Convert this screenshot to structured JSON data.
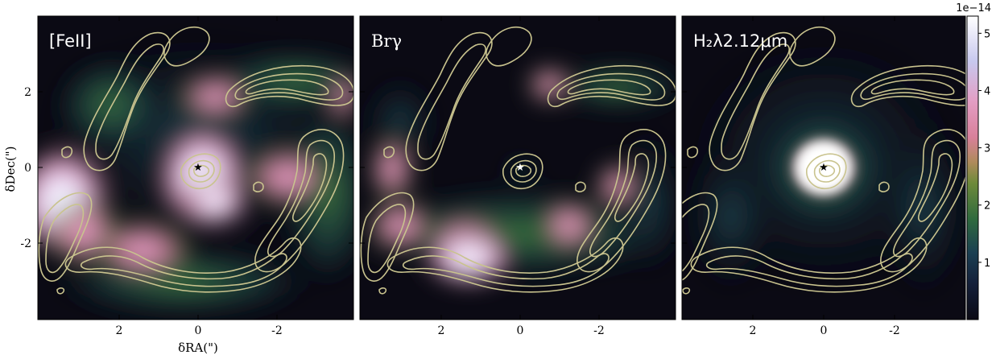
{
  "panels": [
    {
      "label": "[FeII]",
      "label_style": "sans"
    },
    {
      "label": "Brγ",
      "label_style": "serif"
    },
    {
      "label": "H₂λ2.12μm",
      "label_style": "sans"
    }
  ],
  "axes": {
    "xlabel": "δRA(\")",
    "ylabel": "δDec(\")",
    "xticks": [
      "2",
      "0",
      "-2"
    ],
    "yticks": [
      "2",
      "0",
      "-2"
    ]
  },
  "colorbar": {
    "exponent": "1e−14",
    "ticks": [
      "1",
      "2",
      "3",
      "4",
      "5"
    ],
    "range": [
      0,
      5.3
    ]
  },
  "colors": {
    "background": "#0b0a14",
    "contour": "#c9c38e",
    "label": "#ffffff"
  }
}
